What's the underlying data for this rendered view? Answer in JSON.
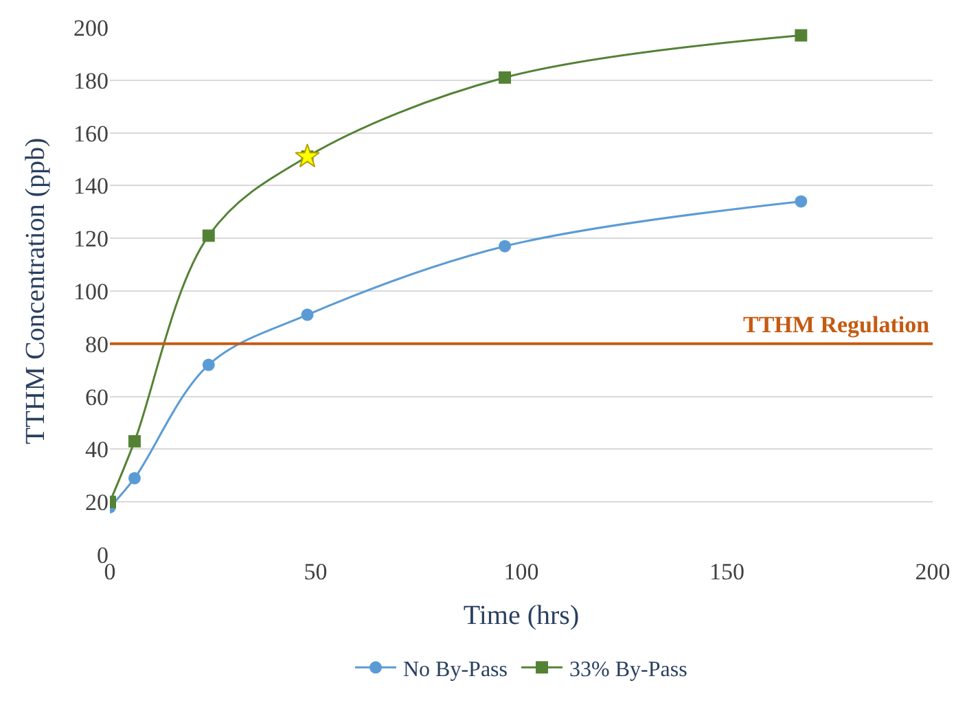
{
  "chart_data": {
    "type": "line",
    "xlabel": "Time (hrs)",
    "ylabel": "TTHM Concentration (ppb)",
    "xlim": [
      0,
      200
    ],
    "xticks": [
      0,
      50,
      100,
      150,
      200
    ],
    "ylim": [
      0,
      200
    ],
    "yticks": [
      0,
      20,
      40,
      60,
      80,
      100,
      120,
      140,
      160,
      180,
      200
    ],
    "grid": "y",
    "legend": "bottom",
    "line_style": "solid",
    "series": [
      {
        "name": "No By-Pass",
        "color": "#5b9bd5",
        "marker": "circle",
        "x": [
          0,
          6,
          24,
          48,
          96,
          168
        ],
        "values": [
          18,
          29,
          72,
          91,
          117,
          134
        ]
      },
      {
        "name": "33% By-Pass",
        "color": "#548235",
        "marker": "square",
        "x": [
          0,
          6,
          24,
          48,
          96,
          168
        ],
        "values": [
          20,
          43,
          121,
          151,
          181,
          197
        ]
      },
      {
        "type": "scatter",
        "color": "#ffff00",
        "marker": "star",
        "x": [
          48
        ],
        "values": [
          151
        ]
      }
    ],
    "ref_lines": [
      {
        "axis": "y",
        "value": 80,
        "label": "TTHM Regulation",
        "color": "#c55a11"
      }
    ]
  }
}
